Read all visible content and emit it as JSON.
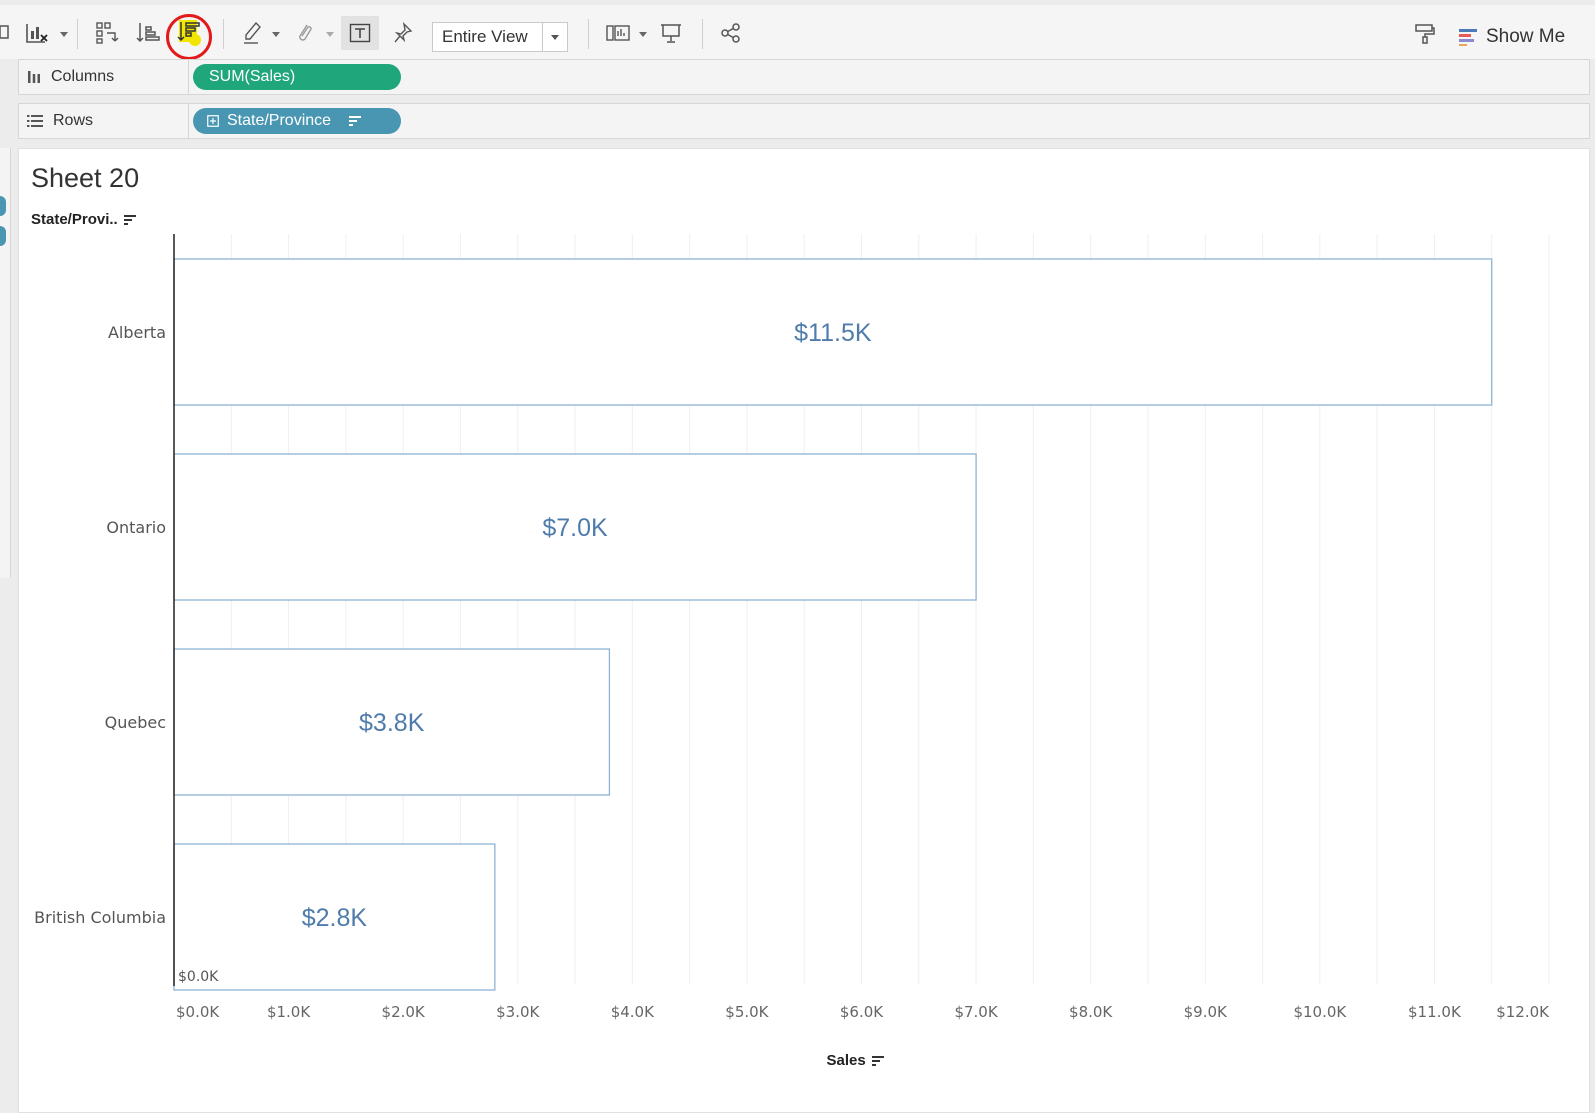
{
  "toolbar": {
    "view_size": "Entire View",
    "show_me_label": "Show Me"
  },
  "shelves": {
    "columns_label": "Columns",
    "rows_label": "Rows",
    "columns_pill": "SUM(Sales)",
    "rows_pill": "State/Province"
  },
  "sheet": {
    "title": "Sheet 20",
    "row_header": "State/Provi.."
  },
  "colors": {
    "bar_fill": "#ffffff",
    "bar_stroke": "#8fb3d4",
    "bar_label": "#4f7cac",
    "measure_pill": "#1fa67a",
    "dimension_pill": "#4996b2",
    "sort_highlight": "#f2e600",
    "annotation_circle": "#e21a1a"
  },
  "chart_data": {
    "type": "bar",
    "orientation": "horizontal",
    "categories": [
      "Alberta",
      "Ontario",
      "Quebec",
      "British Columbia"
    ],
    "values": [
      11.5,
      7.0,
      3.8,
      2.8
    ],
    "data_labels": [
      "$11.5K",
      "$7.0K",
      "$3.8K",
      "$2.8K"
    ],
    "xlabel": "Sales",
    "xlim": [
      0,
      12
    ],
    "x_ticks": [
      "$0.0K",
      "$1.0K",
      "$2.0K",
      "$3.0K",
      "$4.0K",
      "$5.0K",
      "$6.0K",
      "$7.0K",
      "$8.0K",
      "$9.0K",
      "$10.0K",
      "$11.0K",
      "$12.0K"
    ],
    "inner_axis_label": "$0.0K",
    "grid": true
  }
}
